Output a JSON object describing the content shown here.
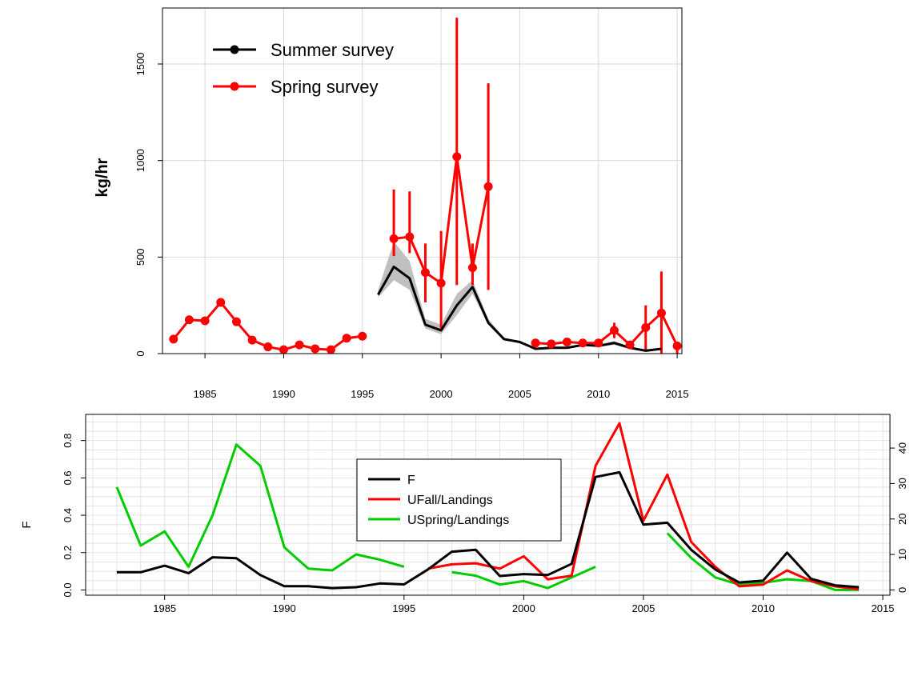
{
  "chart_data": [
    {
      "type": "line",
      "xlabel": "",
      "ylabel": "kg/hr",
      "xlim": [
        1982.3,
        1996.2,
        2002.8,
        2015.3
      ],
      "ylim": [
        0,
        1790
      ],
      "x_ticks": [
        1985,
        1990,
        1995,
        2000,
        2005,
        2010,
        2015
      ],
      "y_ticks": [
        0,
        500,
        1000,
        1500
      ],
      "grid": true,
      "legend_position": "top-left",
      "colors": {
        "summer": "#000000",
        "spring": "#ff0000",
        "ci_band": "#c0c0c0"
      },
      "series": [
        {
          "name": "Summer survey",
          "x": [
            1996,
            1997,
            1998,
            1999,
            2000,
            2001,
            2002,
            2003,
            2004,
            2005,
            2006,
            2007,
            2008,
            2009,
            2010,
            2011,
            2012,
            2013,
            2014
          ],
          "values": [
            305,
            450,
            390,
            150,
            120,
            250,
            345,
            160,
            75,
            60,
            25,
            30,
            30,
            45,
            40,
            55,
            30,
            15,
            25
          ],
          "ci_lower": [
            290,
            380,
            330,
            130,
            100,
            200,
            310,
            150,
            70,
            55,
            20,
            25,
            25,
            40,
            35,
            45,
            25,
            10,
            20
          ],
          "ci_upper": [
            330,
            580,
            480,
            180,
            150,
            310,
            380,
            180,
            80,
            65,
            30,
            35,
            35,
            50,
            45,
            65,
            35,
            20,
            30
          ]
        },
        {
          "name": "Spring survey",
          "segments": [
            {
              "x": [
                1983,
                1984,
                1985,
                1986,
                1987,
                1988,
                1989,
                1990,
                1991,
                1992,
                1993,
                1994,
                1995
              ],
              "values": [
                75,
                175,
                170,
                265,
                165,
                70,
                35,
                20,
                45,
                25,
                20,
                80,
                90
              ],
              "lower": [
                75,
                175,
                170,
                265,
                165,
                70,
                35,
                20,
                45,
                25,
                20,
                80,
                90
              ],
              "upper": [
                75,
                175,
                170,
                265,
                165,
                70,
                35,
                20,
                45,
                25,
                20,
                80,
                90
              ]
            },
            {
              "x": [
                1997,
                1998,
                1999,
                2000,
                2001,
                2002,
                2003
              ],
              "values": [
                595,
                605,
                420,
                365,
                1020,
                445,
                865
              ],
              "lower": [
                505,
                520,
                265,
                130,
                355,
                355,
                330
              ],
              "upper": [
                850,
                840,
                570,
                635,
                1740,
                570,
                1400
              ]
            },
            {
              "x": [
                2006,
                2007,
                2008,
                2009,
                2010,
                2011,
                2012,
                2013,
                2014,
                2015
              ],
              "values": [
                55,
                50,
                60,
                55,
                55,
                120,
                45,
                135,
                210,
                40
              ],
              "lower": [
                40,
                35,
                45,
                40,
                40,
                80,
                30,
                10,
                0,
                0
              ],
              "upper": [
                70,
                65,
                75,
                70,
                70,
                160,
                60,
                250,
                425,
                60
              ]
            }
          ]
        }
      ]
    },
    {
      "type": "line",
      "xlabel": "",
      "ylabel": "F",
      "ylabel_right": "",
      "xlim": [
        1981.7,
        2015.3
      ],
      "ylim": [
        -0.028,
        0.94
      ],
      "ylim_right": [
        -1.5,
        49.5
      ],
      "x_ticks": [
        1985,
        1990,
        1995,
        2000,
        2005,
        2010,
        2015
      ],
      "y_ticks": [
        0.0,
        0.2,
        0.4,
        0.6,
        0.8
      ],
      "y_ticks_right": [
        0,
        10,
        20,
        30,
        40
      ],
      "grid": true,
      "legend_position": "top-center",
      "colors": {
        "F": "#000000",
        "UFall": "#ff0000",
        "USpring": "#00cc00"
      },
      "series": [
        {
          "name": "F",
          "axis": "left",
          "x": [
            1983,
            1984,
            1985,
            1986,
            1987,
            1988,
            1989,
            1990,
            1991,
            1992,
            1993,
            1994,
            1995,
            1996,
            1997,
            1998,
            1999,
            2000,
            2001,
            2002,
            2003,
            2004,
            2005,
            2006,
            2007,
            2008,
            2009,
            2010,
            2011,
            2012,
            2013,
            2014
          ],
          "values": [
            0.095,
            0.095,
            0.13,
            0.09,
            0.175,
            0.17,
            0.08,
            0.02,
            0.02,
            0.01,
            0.015,
            0.035,
            0.03,
            0.11,
            0.205,
            0.215,
            0.075,
            0.085,
            0.08,
            0.14,
            0.605,
            0.63,
            0.35,
            0.36,
            0.215,
            0.11,
            0.04,
            0.05,
            0.2,
            0.06,
            0.025,
            0.015
          ]
        },
        {
          "name": "UFall/Landings",
          "axis": "right",
          "x": [
            1996,
            1997,
            1998,
            1999,
            2000,
            2001,
            2002,
            2003,
            2004,
            2005,
            2006,
            2007,
            2008,
            2009,
            2010,
            2011,
            2012,
            2013,
            2014
          ],
          "values": [
            6,
            7.2,
            7.5,
            6,
            9.5,
            3,
            4,
            35,
            47,
            19.5,
            32.5,
            13.5,
            6.5,
            1,
            1.5,
            5.5,
            2.5,
            1,
            0.2
          ]
        },
        {
          "name": "USpring/Landings",
          "axis": "right",
          "segments": [
            {
              "x": [
                1983,
                1984,
                1985,
                1986,
                1987,
                1988,
                1989,
                1990,
                1991,
                1992,
                1993,
                1994,
                1995
              ],
              "values": [
                29,
                12.5,
                16.5,
                6.5,
                21,
                41,
                35,
                12,
                6,
                5.5,
                10,
                8.5,
                6.5
              ]
            },
            {
              "x": [
                1997,
                1998,
                1999,
                2000,
                2001,
                2002,
                2003
              ],
              "values": [
                5,
                4,
                1.5,
                2.5,
                0.5,
                3.5,
                6.5
              ]
            },
            {
              "x": [
                2006,
                2007,
                2008,
                2009,
                2010,
                2011,
                2012,
                2013,
                2014
              ],
              "values": [
                16,
                9,
                3.5,
                1.5,
                2,
                3,
                2.5,
                0,
                0
              ]
            }
          ]
        }
      ]
    }
  ]
}
